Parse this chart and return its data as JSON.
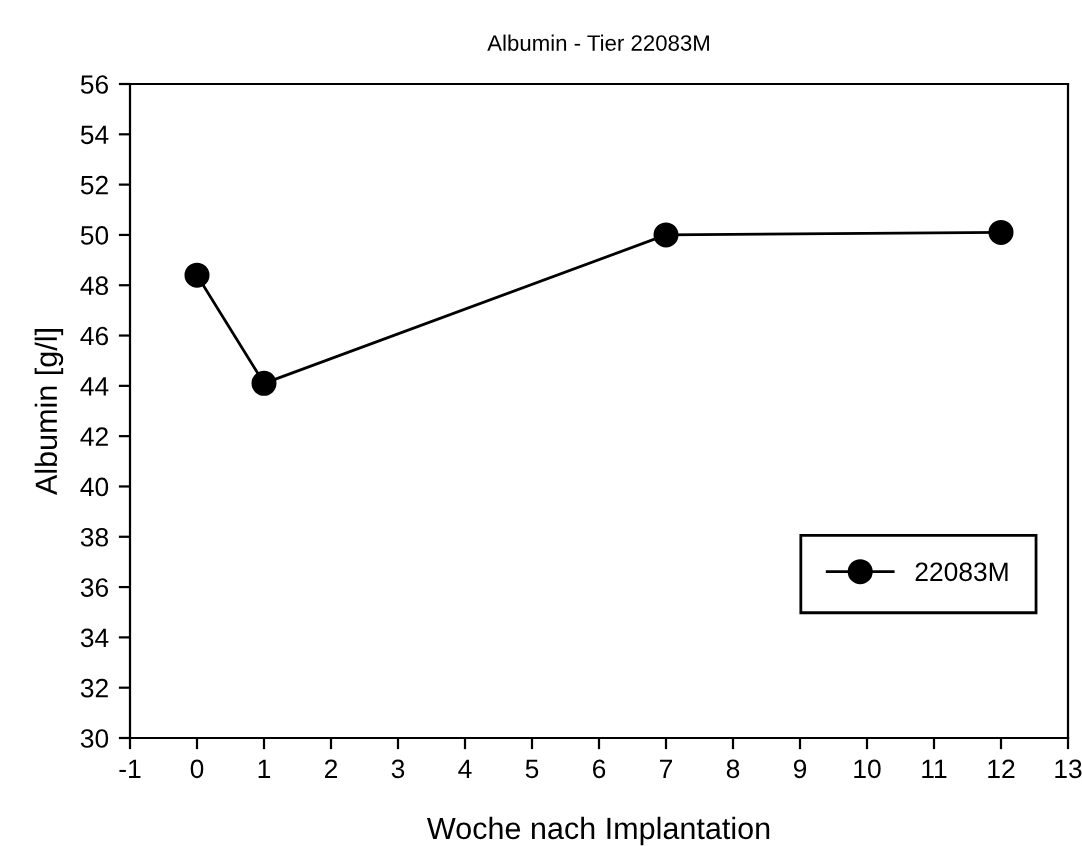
{
  "chart_data": {
    "type": "line",
    "title": "Albumin - Tier 22083M",
    "xlabel": "Woche nach Implantation",
    "ylabel": "Albumin [g/l]",
    "x": [
      0,
      1,
      7,
      12
    ],
    "series": [
      {
        "name": "22083M",
        "color": "#000000",
        "values": [
          48.4,
          44.1,
          50.0,
          50.1
        ]
      }
    ],
    "xlim": [
      -1,
      13
    ],
    "xticks": [
      -1,
      0,
      1,
      2,
      3,
      4,
      5,
      6,
      7,
      8,
      9,
      10,
      11,
      12,
      13
    ],
    "ylim": [
      30,
      56
    ],
    "yticks": [
      30,
      32,
      34,
      36,
      38,
      40,
      42,
      44,
      46,
      48,
      50,
      52,
      54,
      56
    ],
    "marker": "circle",
    "line_style": "solid",
    "grid": false,
    "legend": "bottom right"
  }
}
